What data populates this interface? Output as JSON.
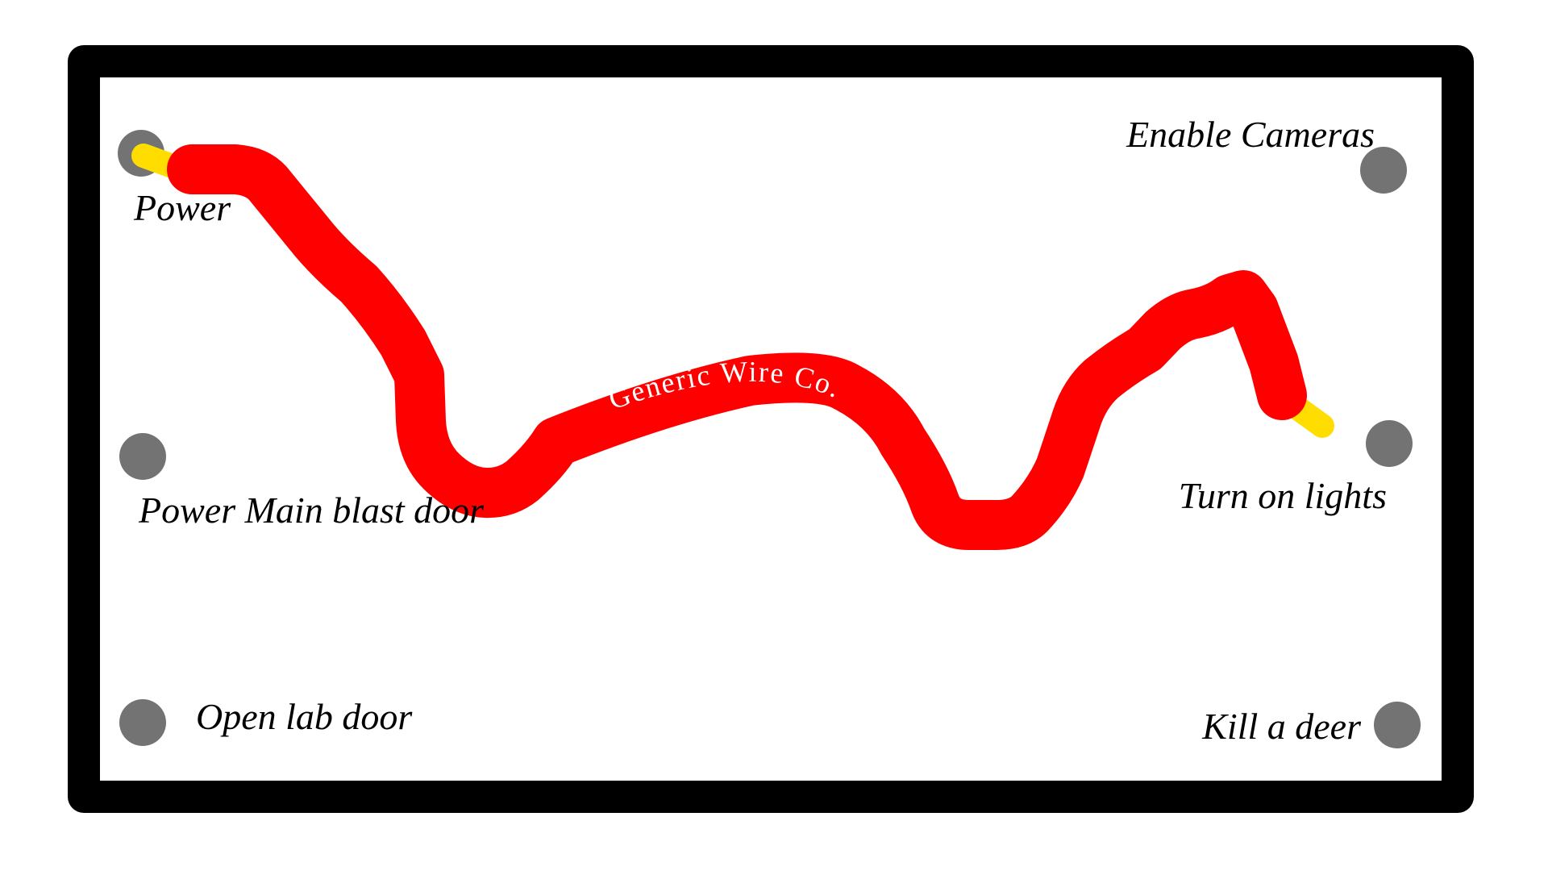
{
  "board": {
    "border_color": "#000000",
    "background_color": "#ffffff"
  },
  "terminals": [
    {
      "id": "power",
      "label": "Power",
      "connected": true
    },
    {
      "id": "power-main-blast-door",
      "label": "Power Main blast door",
      "connected": false
    },
    {
      "id": "open-lab-door",
      "label": "Open lab door",
      "connected": false
    },
    {
      "id": "enable-cameras",
      "label": "Enable Cameras",
      "connected": false
    },
    {
      "id": "turn-on-lights",
      "label": "Turn on lights",
      "connected": true
    },
    {
      "id": "kill-a-deer",
      "label": "Kill a deer",
      "connected": false
    }
  ],
  "terminal_color": "#737373",
  "wire": {
    "brand_text": "Generic Wire Co.",
    "color": "#ff0000",
    "tip_color": "#ffdd00",
    "text_color": "#ffffff",
    "from": "Power",
    "to": "Turn on lights"
  }
}
